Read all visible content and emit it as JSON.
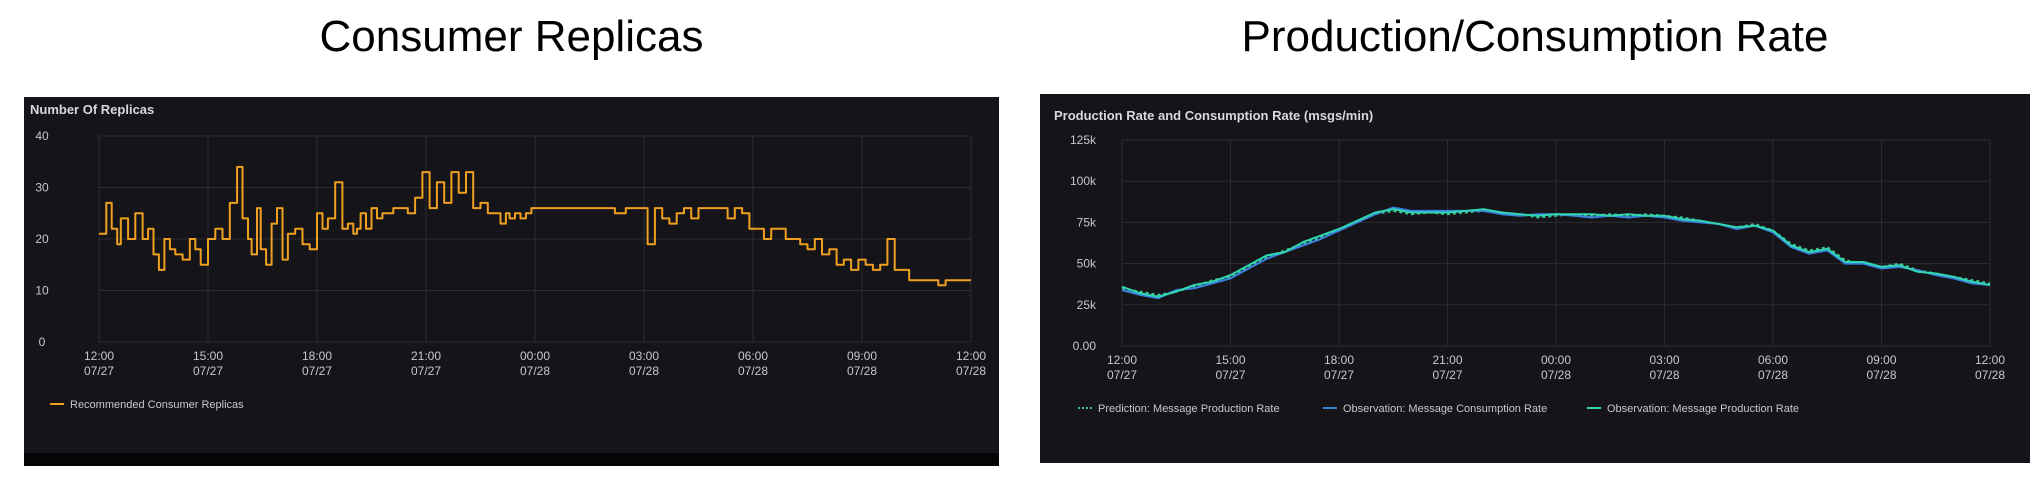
{
  "headings": {
    "left": "Consumer Replicas",
    "right": "Production/Consumption Rate"
  },
  "panels": {
    "left": {
      "title": "Number Of Replicas"
    },
    "right": {
      "title": "Production Rate and Consumption Rate (msgs/min)"
    }
  },
  "colors": {
    "background": "#141419",
    "grid": "#2c2c33",
    "text": "#c7c7ce",
    "replicas": "#f0a020",
    "prediction": "#3fc48e",
    "consumption": "#3b82e0",
    "production": "#2fd6b0"
  },
  "chart_data": [
    {
      "type": "line",
      "title": "Number Of Replicas",
      "x_tick_labels": [
        "12:00\n07/27",
        "15:00\n07/27",
        "18:00\n07/27",
        "21:00\n07/27",
        "00:00\n07/28",
        "03:00\n07/28",
        "06:00\n07/28",
        "09:00\n07/28",
        "12:00\n07/28"
      ],
      "y_tick_labels": [
        "40",
        "30",
        "20",
        "10",
        "0"
      ],
      "ylim": [
        0,
        40
      ],
      "xlim_hours": [
        0,
        24
      ],
      "grid": true,
      "legend_position": "bottom-left",
      "series": [
        {
          "name": "Recommended Consumer Replicas",
          "color": "#f0a020",
          "step": true,
          "x": [
            0,
            0.2,
            0.35,
            0.5,
            0.6,
            0.8,
            1.0,
            1.2,
            1.35,
            1.5,
            1.65,
            1.8,
            1.95,
            2.1,
            2.3,
            2.5,
            2.65,
            2.8,
            3.0,
            3.2,
            3.4,
            3.6,
            3.8,
            3.95,
            4.1,
            4.2,
            4.35,
            4.45,
            4.6,
            4.75,
            4.9,
            5.05,
            5.2,
            5.4,
            5.6,
            5.8,
            6.0,
            6.15,
            6.3,
            6.5,
            6.7,
            6.85,
            7.0,
            7.1,
            7.2,
            7.35,
            7.5,
            7.65,
            7.8,
            7.95,
            8.1,
            8.3,
            8.5,
            8.7,
            8.9,
            9.1,
            9.3,
            9.5,
            9.7,
            9.9,
            10.1,
            10.3,
            10.5,
            10.7,
            10.9,
            11.05,
            11.2,
            11.3,
            11.45,
            11.6,
            11.75,
            11.9,
            12.05,
            12.2,
            12.4,
            12.6,
            12.8,
            13.0,
            13.3,
            13.6,
            13.9,
            14.2,
            14.5,
            14.8,
            15.1,
            15.3,
            15.5,
            15.7,
            15.9,
            16.1,
            16.3,
            16.5,
            16.7,
            16.9,
            17.1,
            17.3,
            17.5,
            17.7,
            17.9,
            18.1,
            18.3,
            18.5,
            18.7,
            18.9,
            19.1,
            19.3,
            19.5,
            19.7,
            19.9,
            20.1,
            20.3,
            20.5,
            20.7,
            20.9,
            21.1,
            21.3,
            21.5,
            21.7,
            21.9,
            22.1,
            22.3,
            22.5,
            22.7,
            22.9,
            23.1,
            23.3,
            23.5,
            23.7,
            24.0
          ],
          "values": [
            21,
            27,
            22,
            19,
            24,
            20,
            25,
            20,
            22,
            17,
            14,
            20,
            18,
            17,
            16,
            20,
            18,
            15,
            20,
            22,
            20,
            27,
            34,
            24,
            20,
            17,
            26,
            18,
            15,
            23,
            26,
            16,
            21,
            22,
            19,
            18,
            25,
            22,
            24,
            31,
            22,
            23,
            21,
            22,
            25,
            22,
            26,
            24,
            25,
            25,
            26,
            26,
            25,
            28,
            33,
            26,
            31,
            27,
            33,
            29,
            33,
            26,
            27,
            25,
            25,
            23,
            25,
            24,
            25,
            24,
            25,
            26,
            26,
            26,
            26,
            26,
            26,
            26,
            26,
            26,
            26,
            25,
            26,
            26,
            19,
            26,
            24,
            23,
            25,
            26,
            24,
            26,
            26,
            26,
            26,
            24,
            26,
            25,
            22,
            22,
            20,
            22,
            22,
            20,
            20,
            19,
            18,
            20,
            17,
            18,
            15,
            16,
            14,
            16,
            15,
            14,
            15,
            20,
            14,
            14,
            12,
            12,
            12,
            12,
            11,
            12,
            12,
            12,
            12
          ]
        }
      ]
    },
    {
      "type": "line",
      "title": "Production Rate and Consumption Rate (msgs/min)",
      "x_tick_labels": [
        "12:00\n07/27",
        "15:00\n07/27",
        "18:00\n07/27",
        "21:00\n07/27",
        "00:00\n07/28",
        "03:00\n07/28",
        "06:00\n07/28",
        "09:00\n07/28",
        "12:00\n07/28"
      ],
      "y_tick_labels": [
        "125k",
        "100k",
        "75k",
        "50k",
        "25k",
        "0.00"
      ],
      "ylim": [
        0,
        125000
      ],
      "xlim_hours": [
        0,
        24
      ],
      "grid": true,
      "legend_position": "bottom-left",
      "x": [
        0,
        0.5,
        1.0,
        1.5,
        2.0,
        2.5,
        3.0,
        3.5,
        4.0,
        4.5,
        5.0,
        5.5,
        6.0,
        6.5,
        7.0,
        7.5,
        8.0,
        8.5,
        9.0,
        9.5,
        10.0,
        10.5,
        11.0,
        11.5,
        12.0,
        12.5,
        13.0,
        13.5,
        14.0,
        14.5,
        15.0,
        15.5,
        16.0,
        16.5,
        17.0,
        17.5,
        18.0,
        18.5,
        19.0,
        19.5,
        20.0,
        20.5,
        21.0,
        21.5,
        22.0,
        22.5,
        23.0,
        23.5,
        24.0
      ],
      "series": [
        {
          "name": "Prediction: Message Production Rate",
          "color": "#3fc48e",
          "dashed": true,
          "values": [
            35000,
            33000,
            31000,
            33000,
            36000,
            40000,
            42000,
            48000,
            54000,
            58000,
            62000,
            66000,
            70000,
            75000,
            80000,
            82000,
            80000,
            81000,
            80000,
            81000,
            82000,
            81000,
            80000,
            78000,
            79000,
            80000,
            79000,
            80000,
            79000,
            80000,
            79000,
            78000,
            76000,
            74000,
            72000,
            74000,
            70000,
            62000,
            58000,
            60000,
            52000,
            50000,
            48000,
            50000,
            46000,
            44000,
            42000,
            40000,
            38000
          ]
        },
        {
          "name": "Observation: Message Consumption Rate",
          "color": "#3b82e0",
          "values": [
            34000,
            31000,
            29000,
            34000,
            35000,
            38000,
            41000,
            47000,
            53000,
            57000,
            61000,
            65000,
            70000,
            75000,
            80000,
            84000,
            82000,
            82000,
            82000,
            82000,
            82000,
            80000,
            79000,
            80000,
            80000,
            79000,
            78000,
            79000,
            78000,
            79000,
            78000,
            76000,
            75000,
            74000,
            71000,
            73000,
            69000,
            60000,
            56000,
            58000,
            50000,
            50000,
            47000,
            48000,
            46000,
            43000,
            41000,
            38000,
            37000
          ]
        },
        {
          "name": "Observation: Message Production Rate",
          "color": "#2fd6b0",
          "values": [
            36000,
            32000,
            30000,
            33000,
            37000,
            39000,
            43000,
            49000,
            55000,
            57000,
            63000,
            67000,
            71000,
            76000,
            81000,
            83000,
            81000,
            81000,
            81000,
            82000,
            83000,
            81000,
            80000,
            79000,
            80000,
            80000,
            80000,
            79000,
            80000,
            79000,
            79000,
            77000,
            76000,
            74000,
            72000,
            73000,
            70000,
            61000,
            57000,
            59000,
            51000,
            51000,
            48000,
            49000,
            45000,
            44000,
            42000,
            39000,
            37000
          ]
        }
      ]
    }
  ]
}
